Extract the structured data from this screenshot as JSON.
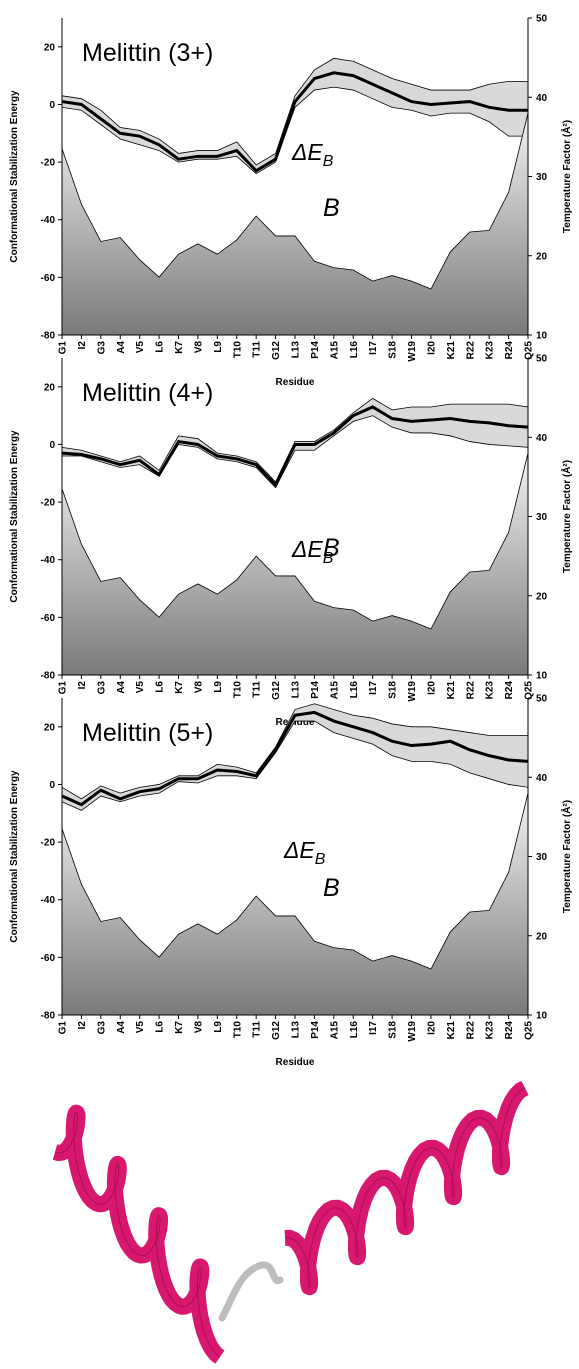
{
  "chart_data": [
    {
      "type": "line",
      "title": "Melittin (3+)",
      "x_label": "Residue",
      "y_label": "Conformational Stabilization Energy",
      "y2_label": "Temperature Factor (Å²)",
      "categories": [
        "G1",
        "I2",
        "G3",
        "A4",
        "V5",
        "L6",
        "K7",
        "V8",
        "L9",
        "T10",
        "T11",
        "G12",
        "L13",
        "P14",
        "A15",
        "L16",
        "I17",
        "S18",
        "W19",
        "I20",
        "K21",
        "R22",
        "K23",
        "R24",
        "Q25"
      ],
      "ylim": [
        -80,
        30
      ],
      "yticks": [
        -80,
        -60,
        -40,
        -20,
        0,
        20
      ],
      "y2lim": [
        10,
        50
      ],
      "y2ticks": [
        10,
        20,
        30,
        40,
        50
      ],
      "grid": false,
      "series": [
        {
          "name": "ΔE",
          "subscript": "B",
          "color": "#000000",
          "band_color": "#d9d9d9",
          "values": [
            1,
            0,
            -5,
            -10,
            -11,
            -14,
            -19,
            -18,
            -18,
            -16,
            -23,
            -19,
            1,
            9,
            11,
            10,
            7,
            4,
            1,
            0,
            0.5,
            1,
            -1,
            -2,
            -2
          ],
          "lower": [
            -1,
            -2,
            -7,
            -12,
            -14,
            -16,
            -20,
            -19,
            -19,
            -18,
            -24,
            -20,
            -1,
            5,
            6,
            5,
            2,
            -1,
            -2,
            -4,
            -3,
            -3,
            -6,
            -11,
            -11
          ],
          "upper": [
            3,
            2,
            -2,
            -8,
            -9,
            -12,
            -17,
            -16,
            -16,
            -13,
            -21,
            -17,
            3,
            12,
            16,
            15,
            12,
            9,
            7,
            5,
            5,
            5,
            7,
            8,
            8
          ]
        },
        {
          "name": "B",
          "axis": "y2",
          "color": "#808080",
          "values": [
            33.5,
            26.5,
            21.8,
            22.3,
            19.5,
            17.3,
            20.2,
            21.5,
            20.2,
            22,
            25,
            22.5,
            22.5,
            19.3,
            18.5,
            18.2,
            16.8,
            17.5,
            16.8,
            15.8,
            20.5,
            23,
            23.2,
            28,
            38
          ]
        }
      ]
    },
    {
      "type": "line",
      "title": "Melittin (4+)",
      "x_label": "Residue",
      "y_label": "Conformational Stabilization Energy",
      "y2_label": "Temperature Factor (Å²)",
      "categories": [
        "G1",
        "I2",
        "G3",
        "A4",
        "V5",
        "L6",
        "K7",
        "V8",
        "L9",
        "T10",
        "T11",
        "G12",
        "L13",
        "P14",
        "A15",
        "L16",
        "I17",
        "S18",
        "W19",
        "I20",
        "K21",
        "R22",
        "K23",
        "R24",
        "Q25"
      ],
      "ylim": [
        -80,
        30
      ],
      "yticks": [
        -80,
        -60,
        -40,
        -20,
        0,
        20
      ],
      "y2lim": [
        10,
        50
      ],
      "y2ticks": [
        10,
        20,
        30,
        40,
        50
      ],
      "grid": false,
      "series": [
        {
          "name": "ΔE",
          "subscript": "B",
          "color": "#000000",
          "band_color": "#d9d9d9",
          "values": [
            -3,
            -3.5,
            -5,
            -7,
            -5.5,
            -10.5,
            1,
            0,
            -4,
            -5,
            -7,
            -14,
            0,
            0,
            4,
            10,
            13,
            9,
            8,
            8.5,
            9,
            8,
            7.5,
            6.5,
            6
          ],
          "lower": [
            -4,
            -4,
            -6,
            -8,
            -7,
            -11,
            0,
            -1,
            -5,
            -6,
            -8,
            -15,
            -2,
            -2,
            3,
            8,
            10,
            6,
            4,
            4,
            3,
            1,
            0,
            -0.5,
            -1
          ],
          "upper": [
            -1,
            -2,
            -4,
            -6,
            -4,
            -9,
            3,
            2,
            -3,
            -4,
            -6,
            -13,
            1,
            1,
            5,
            11,
            16,
            12,
            13,
            13,
            14,
            14,
            14,
            14,
            13
          ]
        },
        {
          "name": "B",
          "axis": "y2",
          "color": "#808080",
          "values": [
            33.5,
            26.5,
            21.8,
            22.3,
            19.5,
            17.3,
            20.2,
            21.5,
            20.2,
            22,
            25,
            22.5,
            22.5,
            19.3,
            18.5,
            18.2,
            16.8,
            17.5,
            16.8,
            15.8,
            20.5,
            23,
            23.2,
            28,
            38
          ]
        }
      ]
    },
    {
      "type": "line",
      "title": "Melittin (5+)",
      "x_label": "Residue",
      "y_label": "Conformational Stabilization Energy",
      "y2_label": "Temperature Factor (Å²)",
      "categories": [
        "G1",
        "I2",
        "G3",
        "A4",
        "V5",
        "L6",
        "K7",
        "V8",
        "L9",
        "T10",
        "T11",
        "G12",
        "L13",
        "P14",
        "A15",
        "L16",
        "I17",
        "S18",
        "W19",
        "I20",
        "K21",
        "R22",
        "K23",
        "R24",
        "Q25"
      ],
      "ylim": [
        -80,
        30
      ],
      "yticks": [
        -80,
        -60,
        -40,
        -20,
        0,
        20
      ],
      "y2lim": [
        10,
        50
      ],
      "y2ticks": [
        10,
        20,
        30,
        40,
        50
      ],
      "grid": false,
      "series": [
        {
          "name": "ΔE",
          "subscript": "B",
          "color": "#000000",
          "band_color": "#d9d9d9",
          "values": [
            -4,
            -7,
            -2,
            -5,
            -2.5,
            -1.5,
            2,
            2,
            5,
            4.5,
            3,
            12,
            24,
            25,
            22,
            20,
            18,
            15,
            13.5,
            14,
            15,
            12,
            10,
            8.5,
            8
          ],
          "lower": [
            -6,
            -9,
            -4,
            -6,
            -4,
            -3,
            1,
            0.5,
            3,
            3,
            2,
            11,
            22,
            22,
            18,
            16,
            14,
            10,
            8,
            8,
            7,
            4,
            2,
            0,
            -1
          ],
          "upper": [
            -1,
            -5,
            -0.5,
            -3,
            -1,
            0,
            3,
            3,
            7,
            6,
            4,
            13,
            26,
            28,
            26,
            24,
            23,
            21,
            20,
            20,
            19,
            18,
            17,
            17,
            17
          ]
        },
        {
          "name": "B",
          "axis": "y2",
          "color": "#808080",
          "values": [
            33.5,
            26.5,
            21.8,
            22.3,
            19.5,
            17.3,
            20.2,
            21.5,
            20.2,
            22,
            25,
            22.5,
            22.5,
            19.3,
            18.5,
            18.2,
            16.8,
            17.5,
            16.8,
            15.8,
            20.5,
            23,
            23.2,
            28,
            38
          ]
        }
      ]
    }
  ]
}
